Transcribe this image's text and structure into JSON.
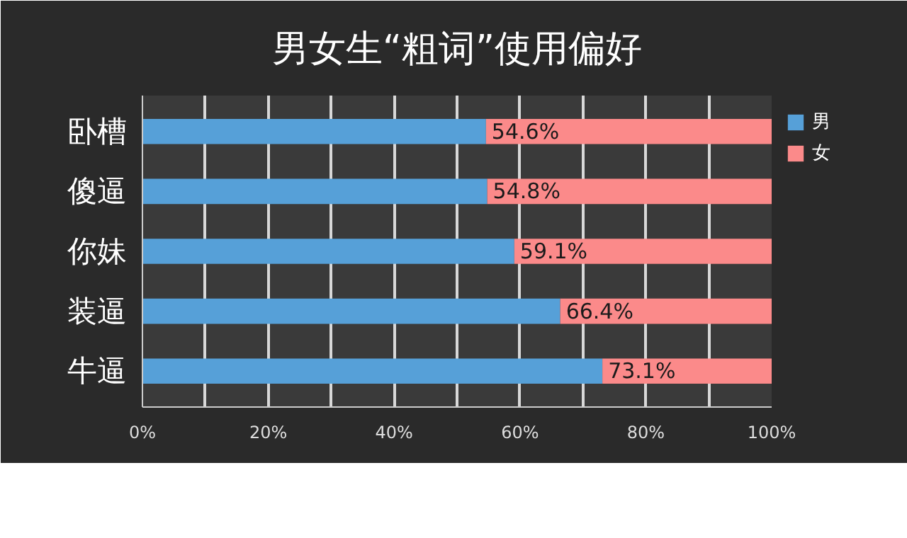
{
  "chart_data": {
    "type": "bar",
    "orientation": "horizontal",
    "stacked": true,
    "title": "男女生“粗词”使用偏好",
    "categories": [
      "卧槽",
      "傻逼",
      "你妹",
      "装逼",
      "牛逼"
    ],
    "series": [
      {
        "name": "男",
        "color": "#56a0d8",
        "values": [
          54.6,
          54.8,
          59.1,
          66.4,
          73.1
        ],
        "value_labels": [
          "54.6%",
          "54.8%",
          "59.1%",
          "66.4%",
          "73.1%"
        ]
      },
      {
        "name": "女",
        "color": "#fb8a8a",
        "values": [
          45.4,
          45.2,
          40.9,
          33.6,
          26.9
        ]
      }
    ],
    "xlim": [
      0,
      100
    ],
    "xticks": [
      {
        "value": 0,
        "label": "0%"
      },
      {
        "value": 10,
        "label": null
      },
      {
        "value": 20,
        "label": "20%"
      },
      {
        "value": 30,
        "label": null
      },
      {
        "value": 40,
        "label": "40%"
      },
      {
        "value": 50,
        "label": null
      },
      {
        "value": 60,
        "label": "60%"
      },
      {
        "value": 70,
        "label": null
      },
      {
        "value": 80,
        "label": "80%"
      },
      {
        "value": 90,
        "label": null
      },
      {
        "value": 100,
        "label": "100%"
      }
    ],
    "grid": "x",
    "legend": "top right"
  }
}
